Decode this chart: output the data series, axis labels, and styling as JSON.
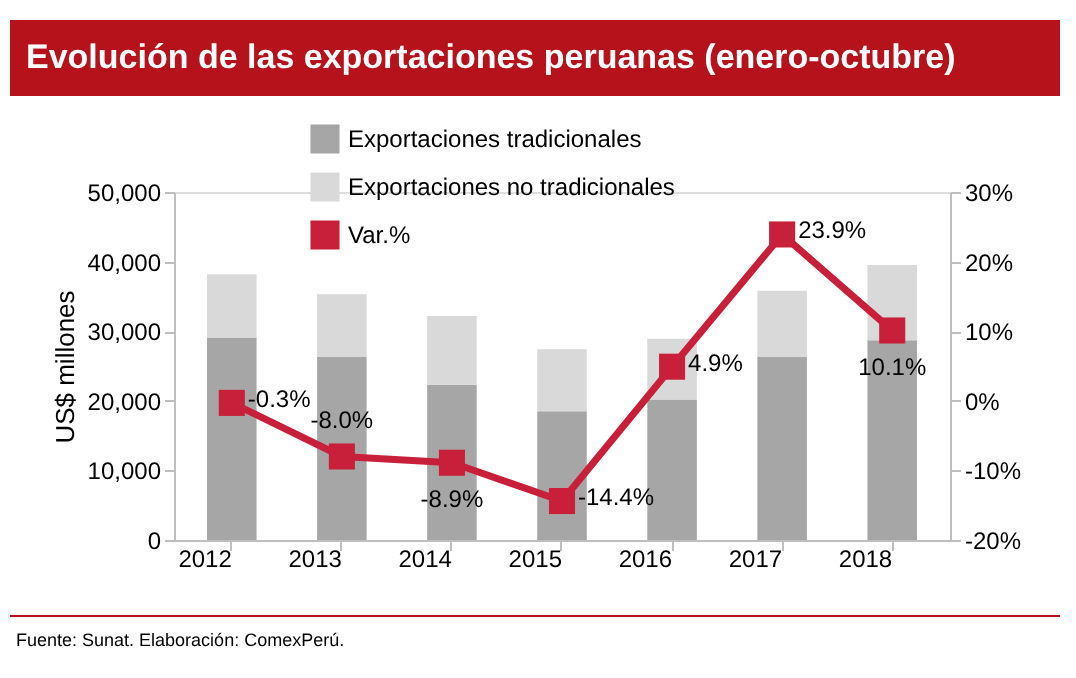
{
  "chart_data": {
    "type": "bar",
    "title": "Evolución de las exportaciones peruanas (enero-octubre)",
    "categories": [
      "2012",
      "2013",
      "2014",
      "2015",
      "2016",
      "2017",
      "2018"
    ],
    "stacked": true,
    "ylabel": "US$ millones",
    "ylim": [
      0,
      50000
    ],
    "yticks": [
      {
        "value": 0,
        "label": "0"
      },
      {
        "value": 10000,
        "label": "10,000"
      },
      {
        "value": 20000,
        "label": "20,000"
      },
      {
        "value": 30000,
        "label": "30,000"
      },
      {
        "value": 40000,
        "label": "40,000"
      },
      {
        "value": 50000,
        "label": "50,000"
      }
    ],
    "y2lim": [
      -20,
      30
    ],
    "y2ticks": [
      {
        "value": -20,
        "label": "-20%"
      },
      {
        "value": -10,
        "label": "-10%"
      },
      {
        "value": 0,
        "label": "0%"
      },
      {
        "value": 10,
        "label": "10%"
      },
      {
        "value": 20,
        "label": "20%"
      },
      {
        "value": 30,
        "label": "30%"
      }
    ],
    "series": [
      {
        "name": "Exportaciones tradicionales",
        "color": "#a6a6a6",
        "values": [
          29100,
          26300,
          22300,
          18500,
          20200,
          26300,
          28700
        ]
      },
      {
        "name": "Exportaciones no tradicionales",
        "color": "#d9d9d9",
        "values": [
          9100,
          9000,
          9900,
          8900,
          8700,
          9500,
          10800
        ]
      },
      {
        "name": "Var.%",
        "color": "#c8203a",
        "type": "line",
        "axis": "y2",
        "marker": "square",
        "values": [
          -0.3,
          -8.0,
          -8.9,
          -14.4,
          4.9,
          23.9,
          10.1
        ],
        "value_labels": [
          "-0.3%",
          "-8.0%",
          "-8.9%",
          "-14.4%",
          "4.9%",
          "23.9%",
          "10.1%"
        ]
      }
    ],
    "legend": "top",
    "grid": false,
    "annotations": [
      "Fuente: Sunat. Elaboración: ComexPerú."
    ]
  }
}
